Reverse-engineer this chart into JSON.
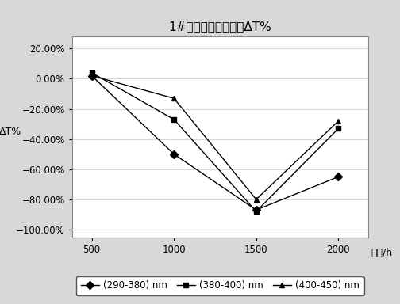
{
  "title": "1#人工老化试验后的ΔT%",
  "ylabel": "ΔT%",
  "xlabel": "时间/h",
  "x": [
    500,
    1000,
    1500,
    2000
  ],
  "series": [
    {
      "label": "(290-380) nm",
      "values": [
        2.0,
        -50.0,
        -87.0,
        -65.0
      ],
      "color": "#000000",
      "marker": "D",
      "linestyle": "-"
    },
    {
      "label": "(380-400) nm",
      "values": [
        4.0,
        -27.0,
        -88.0,
        -33.0
      ],
      "color": "#000000",
      "marker": "s",
      "linestyle": "-"
    },
    {
      "label": "(400-450) nm",
      "values": [
        2.0,
        -13.0,
        -80.0,
        -28.0
      ],
      "color": "#000000",
      "marker": "^",
      "linestyle": "-"
    }
  ],
  "ylim": [
    -105.0,
    28.0
  ],
  "yticks": [
    20.0,
    0.0,
    -20.0,
    -40.0,
    -60.0,
    -80.0,
    -100.0
  ],
  "xticks": [
    500,
    1000,
    1500,
    2000
  ],
  "background_color": "#d8d8d8",
  "plot_background": "#ffffff",
  "grid_color": "#d8d8d8",
  "title_fontsize": 11,
  "label_fontsize": 9,
  "tick_fontsize": 8.5,
  "legend_fontsize": 8.5
}
